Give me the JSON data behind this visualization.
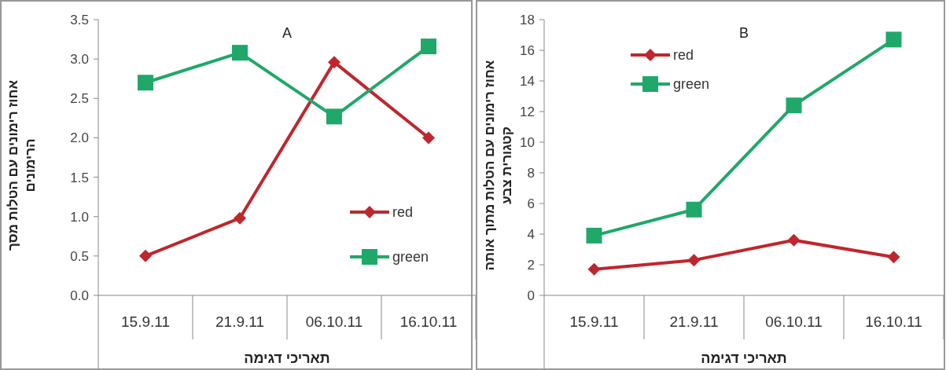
{
  "chart_data": [
    {
      "type": "line",
      "title": "A",
      "ylabel": "אחוז רימונים עם הטלות מסך הרימונים",
      "xlabel": "תאריכי דגימה",
      "categories": [
        "15.9.11",
        "21.9.11",
        "06.10.11",
        "16.10.11"
      ],
      "ylim": [
        0,
        3.5
      ],
      "yticks": [
        {
          "value": 0,
          "label": "0.0"
        },
        0.5,
        {
          "value": 1,
          "label": "1.0"
        },
        1.5,
        {
          "value": 2,
          "label": "2.0"
        },
        2.5,
        {
          "value": 3,
          "label": "3.0"
        },
        3.5
      ],
      "legend": "right",
      "grid": false,
      "series": [
        {
          "name": "red",
          "color": "#c0262d",
          "marker": "diamond",
          "values": [
            0.5,
            0.98,
            2.96,
            2.0
          ]
        },
        {
          "name": "green",
          "color": "#1fa86a",
          "marker": "square",
          "values": [
            2.7,
            3.08,
            2.27,
            3.16
          ]
        }
      ]
    },
    {
      "type": "line",
      "title": "B",
      "ylabel": "אחוז רימונים עם הטלות מתוך אותה קטגורית צבע",
      "xlabel": "תאריכי דגימה",
      "categories": [
        "15.9.11",
        "21.9.11",
        "06.10.11",
        "16.10.11"
      ],
      "ylim": [
        0,
        18
      ],
      "yticks": [
        0,
        2,
        4,
        6,
        8,
        10,
        12,
        14,
        16,
        18
      ],
      "legend": "top left",
      "grid": false,
      "series": [
        {
          "name": "red",
          "color": "#c0262d",
          "marker": "diamond",
          "values": [
            1.7,
            2.3,
            3.6,
            2.5
          ]
        },
        {
          "name": "green",
          "color": "#1fa86a",
          "marker": "square",
          "values": [
            3.9,
            5.6,
            12.4,
            16.7
          ]
        }
      ]
    }
  ]
}
